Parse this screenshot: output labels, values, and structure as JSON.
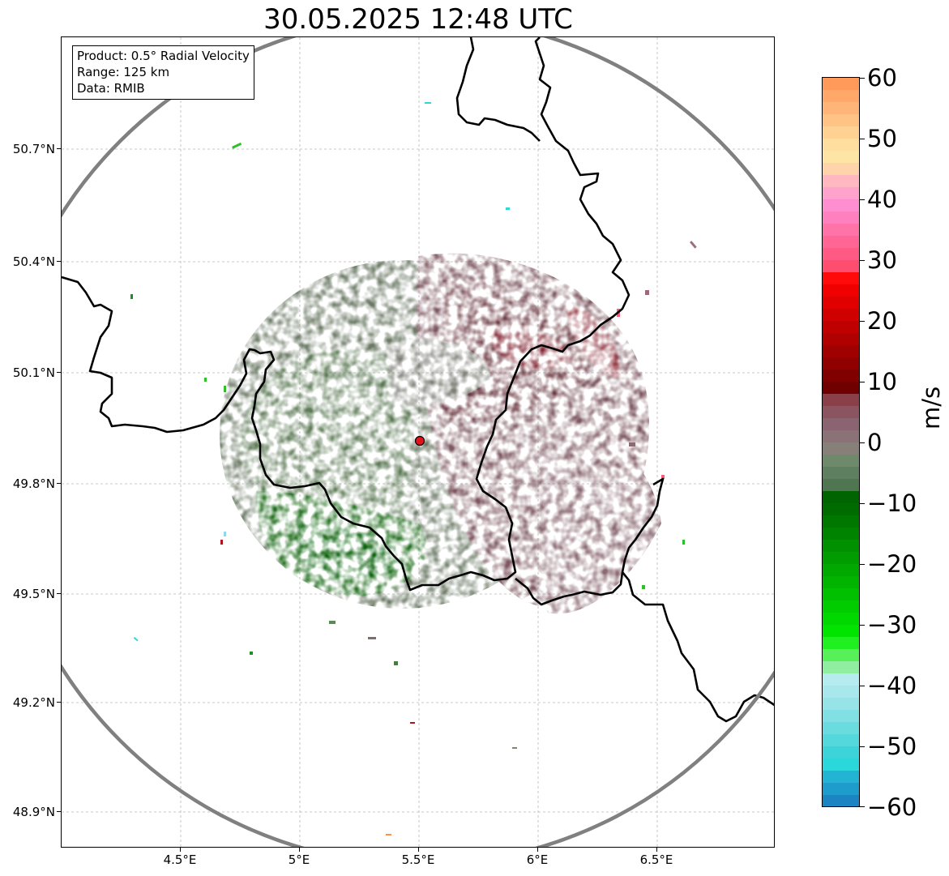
{
  "title": "30.05.2025 12:48 UTC",
  "info": {
    "product": "Product: 0.5° Radial Velocity",
    "range": "Range: 125 km",
    "source": "Data: RMIB"
  },
  "axes": {
    "y_ticks": [
      "50.7°N",
      "50.4°N",
      "50.1°N",
      "49.8°N",
      "49.5°N",
      "49.2°N",
      "48.9°N"
    ],
    "x_ticks": [
      "4.5°E",
      "5°E",
      "5.5°E",
      "6°E",
      "6.5°E"
    ]
  },
  "colorbar": {
    "label": "m/s",
    "ticks": [
      "60",
      "50",
      "40",
      "30",
      "20",
      "10",
      "0",
      "−10",
      "−20",
      "−30",
      "−40",
      "−50",
      "−60"
    ]
  },
  "colors": {
    "range_ring": "#808080",
    "radar_site": "#e3131b",
    "border": "#000000",
    "grid": "#b8b8b8"
  }
}
